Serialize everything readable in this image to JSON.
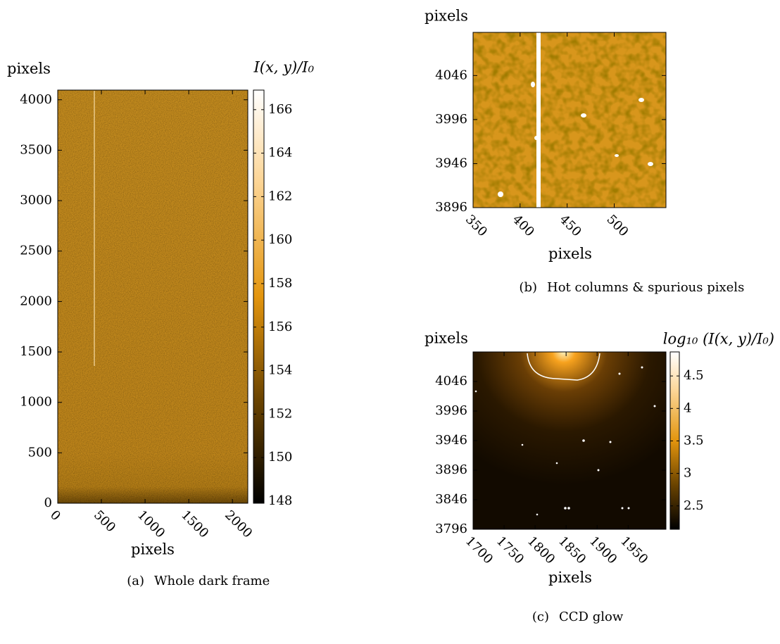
{
  "chart_data": [
    {
      "type": "heatmap",
      "label": "(a)",
      "caption": "Whole dark frame",
      "xlabel": "pixels",
      "ylabel": "pixels",
      "colorbar_label": "I(x, y)/I₀",
      "xlim": [
        0,
        2176
      ],
      "ylim": [
        0,
        4096
      ],
      "xticks": [
        0,
        500,
        1000,
        1500,
        2000
      ],
      "yticks": [
        0,
        500,
        1000,
        1500,
        2000,
        2500,
        3000,
        3500,
        4000
      ],
      "clim": [
        147.9,
        166.9
      ],
      "cticks": [
        148,
        150,
        152,
        154,
        156,
        158,
        160,
        162,
        164,
        166
      ]
    },
    {
      "type": "heatmap",
      "label": "(b)",
      "caption": "Hot columns & spurious pixels",
      "xlabel": "pixels",
      "ylabel": "pixels",
      "xlim": [
        350,
        555
      ],
      "ylim": [
        3896,
        4095
      ],
      "xticks": [
        350,
        400,
        450,
        500
      ],
      "yticks": [
        3896,
        3946,
        3996,
        4046
      ]
    },
    {
      "type": "heatmap",
      "label": "(c)",
      "caption": "CCD glow",
      "xlabel": "pixels",
      "ylabel": "pixels",
      "colorbar_label": "log₁₀ (I(x, y)/I₀)",
      "xlim": [
        1700,
        2011
      ],
      "ylim": [
        3796,
        4096
      ],
      "xticks": [
        1700,
        1750,
        1800,
        1850,
        1900,
        1950
      ],
      "yticks": [
        3796,
        3846,
        3896,
        3946,
        3996,
        4046
      ],
      "clim": [
        2.14,
        4.87
      ],
      "cticks": [
        2.5,
        3,
        3.5,
        4,
        4.5
      ]
    }
  ]
}
